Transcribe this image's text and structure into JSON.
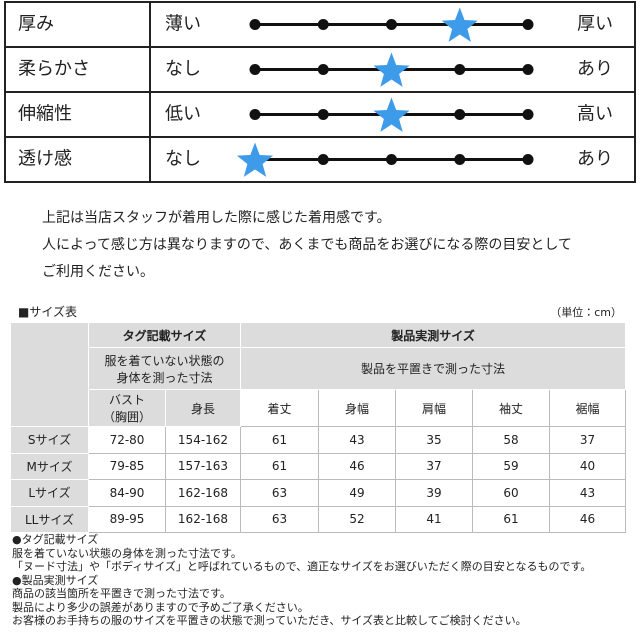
{
  "feel": {
    "rows": [
      {
        "label": "厚み",
        "low": "薄い",
        "high": "厚い",
        "level": 4
      },
      {
        "label": "柔らかさ",
        "low": "なし",
        "high": "あり",
        "level": 3
      },
      {
        "label": "伸縮性",
        "low": "低い",
        "high": "高い",
        "level": 3
      },
      {
        "label": "透け感",
        "low": "なし",
        "high": "あり",
        "level": 1
      }
    ],
    "scale": [
      1,
      2,
      3,
      4,
      5
    ]
  },
  "notice": [
    "上記は当店スタッフが着用した際に感じた着用感です。",
    "人によって感じ方は異なりますので、あくまでも商品をお選びになる際の目安として",
    "ご利用ください。"
  ],
  "size_table": {
    "title": "■サイズ表",
    "unit": "（単位：cm）",
    "group_headers": [
      "タグ記載サイズ",
      "製品実測サイズ"
    ],
    "group_notes": [
      "服を着ていない状態の\n身体を測った寸法",
      "製品を平置きで測った寸法"
    ],
    "columns": [
      "バスト\n（胸囲）",
      "身長",
      "着丈",
      "身幅",
      "肩幅",
      "袖丈",
      "裾幅"
    ],
    "rows": [
      {
        "size": "Sサイズ",
        "values": [
          "72-80",
          "154-162",
          61,
          43,
          35,
          58,
          37
        ]
      },
      {
        "size": "Mサイズ",
        "values": [
          "79-85",
          "157-163",
          61,
          46,
          37,
          59,
          40
        ]
      },
      {
        "size": "Lサイズ",
        "values": [
          "84-90",
          "162-168",
          63,
          49,
          39,
          60,
          43
        ]
      },
      {
        "size": "LLサイズ",
        "values": [
          "89-95",
          "162-168",
          63,
          52,
          41,
          61,
          46
        ]
      }
    ]
  },
  "notes": [
    "●タグ記載サイズ",
    "服を着ていない状態の身体を測った寸法です。",
    "「ヌード寸法」や「ボディサイズ」と呼ばれているもので、適正なサイズをお選びいただく際の目安となるものです。",
    "●製品実測サイズ",
    "商品の該当箇所を平置きで測った寸法です。",
    "製品により多少の誤差がありますので予めご了承ください。",
    "お客様のお手持ちの服のサイズを平置きの状態で測っていただき、サイズ表と比較してご検討ください。"
  ]
}
